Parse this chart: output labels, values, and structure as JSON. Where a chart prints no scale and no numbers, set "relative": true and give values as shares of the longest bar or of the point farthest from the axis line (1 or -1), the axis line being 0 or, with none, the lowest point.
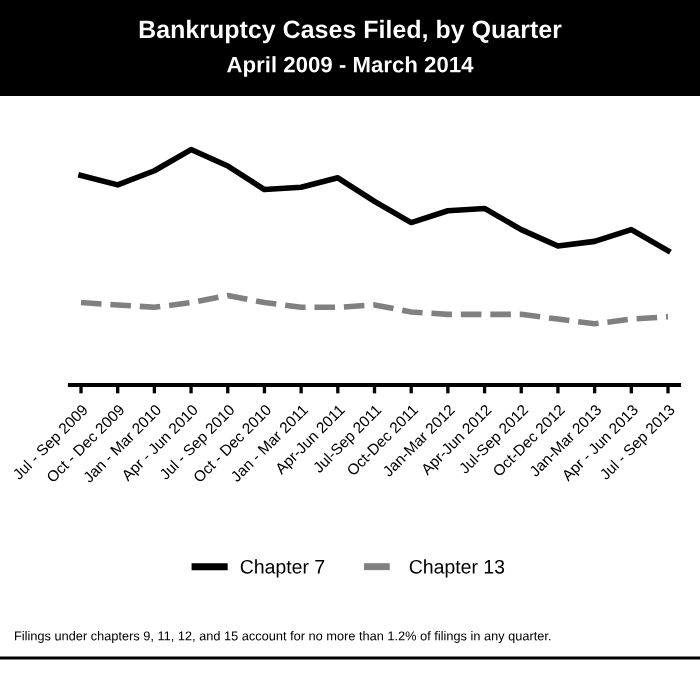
{
  "chart_data": {
    "type": "line",
    "title": "Bankruptcy Cases Filed, by Quarter",
    "subtitle": "April 2009 - March 2014",
    "relative": true,
    "categories": [
      "Jul - Sep 2009",
      "Oct - Dec 2009",
      "Jan - Mar 2010",
      "Apr - Jun 2010",
      "Jul - Sep 2010",
      "Oct - Dec 2010",
      "Jan - Mar 2011",
      "Apr-Jun 2011",
      "Jul-Sep 2011",
      "Oct-Dec 2011",
      "Jan-Mar 2012",
      "Apr-Jun 2012",
      "Jul-Sep 2012",
      "Oct-Dec 2012",
      "Jan-Mar 2013",
      "Apr - Jun 2013",
      "Jul - Sep 2013"
    ],
    "series": [
      {
        "name": "Chapter 7",
        "color": "#000000",
        "line_style": "solid",
        "values": [
          0.89,
          0.85,
          0.91,
          1.0,
          0.93,
          0.83,
          0.84,
          0.88,
          0.78,
          0.69,
          0.74,
          0.75,
          0.66,
          0.59,
          0.61,
          0.66,
          0.57
        ]
      },
      {
        "name": "Chapter 13",
        "color": "#808080",
        "line_style": "dashed",
        "values": [
          0.35,
          0.34,
          0.33,
          0.35,
          0.38,
          0.35,
          0.33,
          0.33,
          0.34,
          0.31,
          0.3,
          0.3,
          0.3,
          0.28,
          0.26,
          0.28,
          0.29
        ]
      }
    ],
    "legend": "bottom",
    "grid": false,
    "marker": "none",
    "annotations": [
      "Filings under chapters 9, 11, 12, and 15 account for no more than 1.2% of filings in any quarter."
    ]
  }
}
